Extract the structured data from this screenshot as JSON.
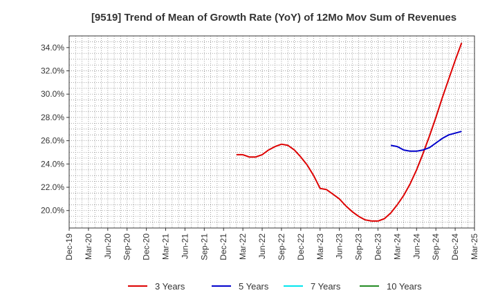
{
  "chart_data": {
    "type": "line",
    "title": "[9519]  Trend of Mean of Growth Rate (YoY) of 12Mo Mov Sum of Revenues",
    "xlabel": "",
    "ylabel": "",
    "ylim": [
      18.5,
      35.0
    ],
    "yticks": [
      20.0,
      22.0,
      24.0,
      26.0,
      28.0,
      30.0,
      32.0,
      34.0
    ],
    "ytick_labels": [
      "20.0%",
      "22.0%",
      "24.0%",
      "26.0%",
      "28.0%",
      "30.0%",
      "32.0%",
      "34.0%"
    ],
    "x_start": "Dec-19",
    "x_month_count": 63,
    "xtick_labels": [
      "Dec-19",
      "Mar-20",
      "Jun-20",
      "Sep-20",
      "Dec-20",
      "Mar-21",
      "Jun-21",
      "Sep-21",
      "Dec-21",
      "Mar-22",
      "Jun-22",
      "Sep-22",
      "Dec-22",
      "Mar-23",
      "Jun-23",
      "Sep-23",
      "Dec-23",
      "Mar-24",
      "Jun-24",
      "Sep-24",
      "Dec-24",
      "Mar-25"
    ],
    "grid": true,
    "legend_position": "bottom",
    "series": [
      {
        "name": "3 Years",
        "color": "#dd0000",
        "start_index": 26,
        "values": [
          24.8,
          24.8,
          24.6,
          24.6,
          24.8,
          25.2,
          25.5,
          25.7,
          25.6,
          25.2,
          24.6,
          23.9,
          23.0,
          21.9,
          21.8,
          21.4,
          21.0,
          20.4,
          19.9,
          19.5,
          19.2,
          19.1,
          19.1,
          19.3,
          19.8,
          20.5,
          21.3,
          22.3,
          23.5,
          24.9,
          26.4,
          28.0,
          29.7,
          31.3,
          32.9,
          34.4
        ]
      },
      {
        "name": "5 Years",
        "color": "#0000cc",
        "start_index": 50,
        "values": [
          25.6,
          25.5,
          25.2,
          25.1,
          25.1,
          25.2,
          25.4,
          25.8,
          26.2,
          26.5,
          26.65,
          26.8
        ]
      },
      {
        "name": "7 Years",
        "color": "#00e5ee",
        "start_index": 0,
        "values": []
      },
      {
        "name": "10 Years",
        "color": "#228b22",
        "start_index": 0,
        "values": []
      }
    ]
  }
}
